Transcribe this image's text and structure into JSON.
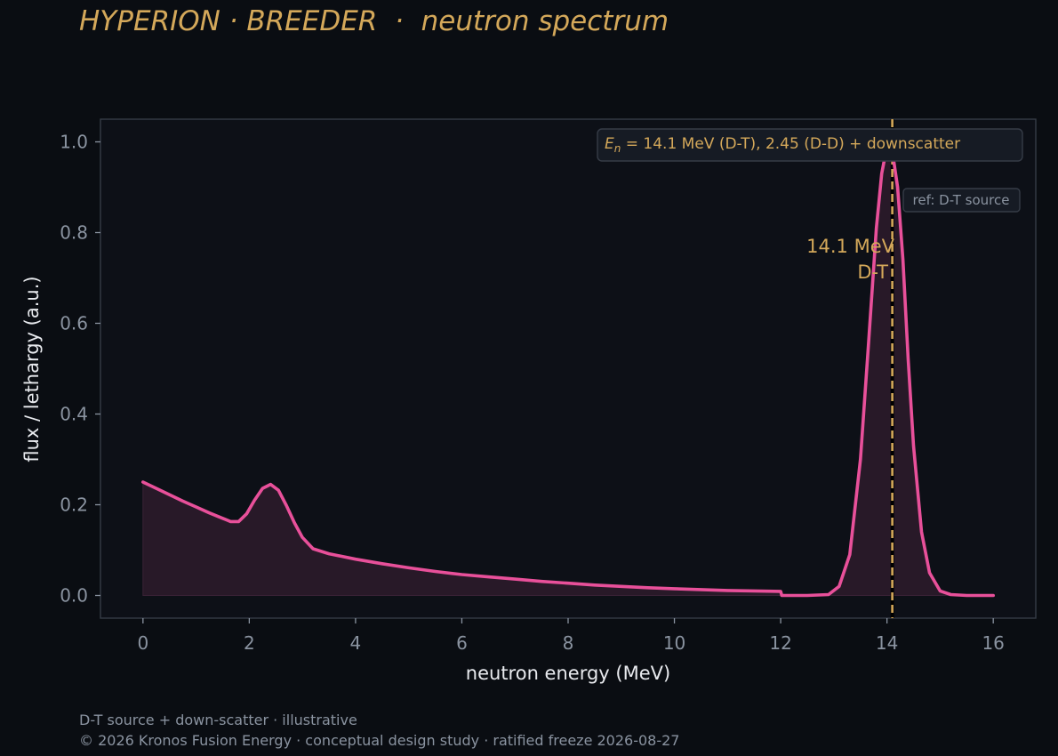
{
  "title": "HYPERION · BREEDER  ·  neutron spectrum",
  "footer": {
    "line1": "D-T source + down-scatter · illustrative",
    "line2": "© 2026 Kronos Fusion Energy · conceptual design study · ratified freeze 2026-08-27"
  },
  "colors": {
    "background": "#0a0d12",
    "plot_background": "#0d1017",
    "accent": "#d4a85a",
    "series": "#e8509a",
    "fill": "#2a1a29",
    "tick_text": "#8a93a0",
    "axis_label": "#e8eaee"
  },
  "chart_data": {
    "type": "line",
    "xlabel": "neutron energy (MeV)",
    "ylabel": "flux / lethargy (a.u.)",
    "xlim": [
      -0.8,
      16.8
    ],
    "ylim": [
      -0.05,
      1.05
    ],
    "xticks": [
      0,
      2,
      4,
      6,
      8,
      10,
      12,
      14,
      16
    ],
    "yticks": [
      0.0,
      0.2,
      0.4,
      0.6,
      0.8,
      1.0
    ],
    "grid": false,
    "series": [
      {
        "x": [
          0,
          0.25,
          0.5,
          0.75,
          1.0,
          1.25,
          1.5,
          1.65,
          1.8,
          1.95,
          2.1,
          2.25,
          2.4,
          2.55,
          2.7,
          2.85,
          3.0,
          3.2,
          3.5,
          4.0,
          4.5,
          5.0,
          5.5,
          6.0,
          6.5,
          7.0,
          7.5,
          8.0,
          8.5,
          9.0,
          9.5,
          10.0,
          10.5,
          11.0,
          11.5,
          12.0,
          12.02,
          12.5,
          12.9,
          13.1,
          13.3,
          13.5,
          13.65,
          13.8,
          13.9,
          14.0,
          14.1,
          14.2,
          14.3,
          14.4,
          14.5,
          14.65,
          14.8,
          15.0,
          15.2,
          15.5,
          16.0
        ],
        "y": [
          0.25,
          0.236,
          0.222,
          0.208,
          0.195,
          0.182,
          0.17,
          0.163,
          0.163,
          0.18,
          0.21,
          0.236,
          0.245,
          0.232,
          0.198,
          0.16,
          0.128,
          0.103,
          0.092,
          0.08,
          0.07,
          0.061,
          0.053,
          0.046,
          0.041,
          0.036,
          0.031,
          0.027,
          0.023,
          0.02,
          0.017,
          0.015,
          0.013,
          0.011,
          0.01,
          0.009,
          0.0,
          0.0,
          0.002,
          0.02,
          0.09,
          0.3,
          0.55,
          0.81,
          0.93,
          0.99,
          0.98,
          0.9,
          0.74,
          0.52,
          0.33,
          0.14,
          0.05,
          0.01,
          0.002,
          0.0,
          0.0
        ]
      }
    ],
    "vline": {
      "x": 14.1,
      "label_line1": "14.1 MeV",
      "label_line2": "D-T"
    },
    "annotation_box": "E_n = 14.1 MeV (D-T), 2.45 (D-D) + downscatter",
    "ref_box": "ref: D-T source"
  }
}
